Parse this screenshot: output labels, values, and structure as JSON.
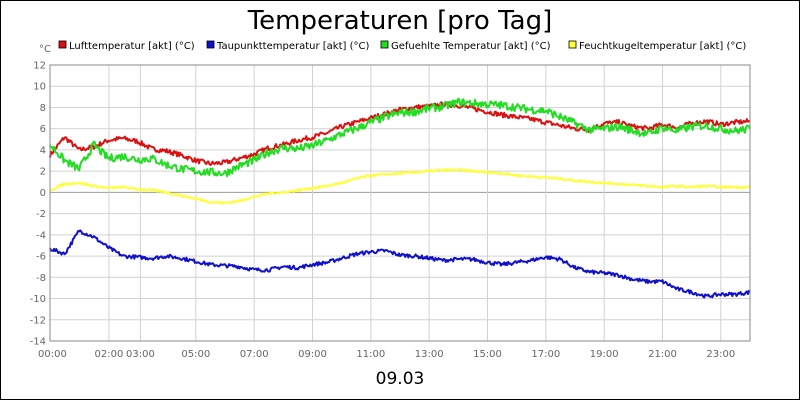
{
  "chart_data": {
    "type": "line",
    "title": "Temperaturen [pro Tag]",
    "unit_label": "°C",
    "xlabel": "09.03",
    "ylim": [
      -14,
      12
    ],
    "y_ticks": [
      12,
      10,
      8,
      6,
      4,
      2,
      0,
      -2,
      -4,
      -6,
      -8,
      -10,
      -12,
      -14
    ],
    "x_tick_labels": [
      {
        "label": "00:00",
        "hour": 0
      },
      {
        "label": "02:00",
        "hour": 2.02
      },
      {
        "label": "03:00",
        "hour": 3.1
      },
      {
        "label": "05:00",
        "hour": 5
      },
      {
        "label": "07:00",
        "hour": 7
      },
      {
        "label": "09:00",
        "hour": 9
      },
      {
        "label": "11:00",
        "hour": 11
      },
      {
        "label": "13:00",
        "hour": 13
      },
      {
        "label": "15:00",
        "hour": 15
      },
      {
        "label": "17:00",
        "hour": 17
      },
      {
        "label": "19:00",
        "hour": 19
      },
      {
        "label": "21:00",
        "hour": 21
      },
      {
        "label": "23:00",
        "hour": 23
      }
    ],
    "x_range_hours": [
      0,
      24
    ],
    "series": [
      {
        "name": "Lufttemperatur [akt] (°C)",
        "color": "#dd1111",
        "hours": [
          0,
          0.5,
          1,
          1.5,
          2,
          2.5,
          3,
          3.5,
          4,
          4.5,
          5,
          5.5,
          6,
          6.5,
          7,
          7.5,
          8,
          8.5,
          9,
          9.5,
          10,
          10.5,
          11,
          11.5,
          12,
          12.5,
          13,
          13.5,
          14,
          14.5,
          15,
          15.5,
          16,
          16.5,
          17,
          17.5,
          18,
          18.5,
          19,
          19.5,
          20,
          20.5,
          21,
          21.5,
          22,
          22.5,
          23,
          23.5,
          24
        ],
        "values": [
          3.5,
          5.2,
          4.0,
          4.3,
          4.9,
          5.1,
          4.8,
          4.1,
          3.9,
          3.5,
          3.0,
          2.7,
          2.8,
          3.2,
          3.6,
          4.2,
          4.5,
          4.9,
          5.2,
          5.6,
          6.2,
          6.6,
          7.0,
          7.4,
          7.8,
          8.0,
          8.1,
          8.3,
          8.2,
          7.9,
          7.6,
          7.3,
          7.1,
          6.9,
          6.6,
          6.3,
          6.0,
          5.9,
          6.5,
          6.6,
          6.2,
          6.0,
          6.4,
          6.1,
          6.5,
          6.7,
          6.4,
          6.6,
          6.7
        ]
      },
      {
        "name": "Taupunkttemperatur [akt] (°C)",
        "color": "#1111cc",
        "hours": [
          0,
          0.5,
          1,
          1.5,
          2,
          2.5,
          3,
          3.5,
          4,
          4.5,
          5,
          5.5,
          6,
          6.5,
          7,
          7.5,
          8,
          8.5,
          9,
          9.5,
          10,
          10.5,
          11,
          11.5,
          12,
          12.5,
          13,
          13.5,
          14,
          14.5,
          15,
          15.5,
          16,
          16.5,
          17,
          17.5,
          18,
          18.5,
          19,
          19.5,
          20,
          20.5,
          21,
          21.5,
          22,
          22.5,
          23,
          23.5,
          24
        ],
        "values": [
          -5.3,
          -5.8,
          -3.6,
          -4.2,
          -5.2,
          -6.0,
          -6.1,
          -6.2,
          -6.0,
          -6.2,
          -6.5,
          -6.8,
          -6.9,
          -7.0,
          -7.3,
          -7.3,
          -7.0,
          -7.1,
          -6.8,
          -6.6,
          -6.2,
          -5.8,
          -5.6,
          -5.5,
          -5.9,
          -6.0,
          -6.2,
          -6.4,
          -6.3,
          -6.3,
          -6.6,
          -6.8,
          -6.6,
          -6.4,
          -6.1,
          -6.3,
          -7.1,
          -7.5,
          -7.6,
          -7.8,
          -8.2,
          -8.4,
          -8.4,
          -9.1,
          -9.4,
          -9.8,
          -9.6,
          -9.6,
          -9.4
        ]
      },
      {
        "name": "Gefuehlte Temperatur [akt] (°C)",
        "color": "#22dd22",
        "hours": [
          0,
          0.5,
          1,
          1.5,
          2,
          2.5,
          3,
          3.5,
          4,
          4.5,
          5,
          5.5,
          6,
          6.5,
          7,
          7.5,
          8,
          8.5,
          9,
          9.5,
          10,
          10.5,
          11,
          11.5,
          12,
          12.5,
          13,
          13.5,
          14,
          14.5,
          15,
          15.5,
          16,
          16.5,
          17,
          17.5,
          18,
          18.5,
          19,
          19.5,
          20,
          20.5,
          21,
          21.5,
          22,
          22.5,
          23,
          23.5,
          24
        ],
        "values": [
          4.5,
          3.0,
          2.2,
          4.5,
          3.2,
          3.4,
          3.1,
          3.2,
          2.6,
          2.2,
          2.0,
          1.9,
          1.8,
          2.5,
          3.0,
          3.8,
          4.2,
          4.1,
          4.4,
          4.9,
          5.5,
          6.0,
          6.6,
          7.1,
          7.5,
          7.6,
          7.9,
          8.1,
          8.5,
          8.4,
          8.3,
          8.2,
          8.0,
          7.8,
          7.7,
          7.1,
          6.5,
          5.9,
          6.0,
          6.2,
          5.8,
          5.5,
          6.1,
          5.8,
          6.2,
          6.3,
          6.0,
          5.8,
          6.0
        ]
      },
      {
        "name": "Feuchtkugeltemperatur [akt] (°C)",
        "color": "#ffff33",
        "hours": [
          0,
          0.5,
          1,
          1.5,
          2,
          2.5,
          3,
          3.5,
          4,
          4.5,
          5,
          5.5,
          6,
          6.5,
          7,
          7.5,
          8,
          8.5,
          9,
          9.5,
          10,
          10.5,
          11,
          11.5,
          12,
          12.5,
          13,
          13.5,
          14,
          14.5,
          15,
          15.5,
          16,
          16.5,
          17,
          17.5,
          18,
          18.5,
          19,
          19.5,
          20,
          20.5,
          21,
          21.5,
          22,
          22.5,
          23,
          23.5,
          24
        ],
        "values": [
          0.2,
          0.8,
          0.9,
          0.6,
          0.4,
          0.5,
          0.3,
          0.2,
          0.0,
          -0.3,
          -0.6,
          -0.9,
          -1.0,
          -0.8,
          -0.4,
          -0.1,
          0.0,
          0.2,
          0.4,
          0.6,
          0.9,
          1.3,
          1.6,
          1.7,
          1.8,
          1.9,
          2.0,
          2.1,
          2.1,
          2.0,
          1.9,
          1.8,
          1.6,
          1.5,
          1.4,
          1.3,
          1.1,
          1.0,
          0.9,
          0.8,
          0.7,
          0.6,
          0.5,
          0.6,
          0.5,
          0.6,
          0.5,
          0.5,
          0.5
        ]
      }
    ]
  }
}
